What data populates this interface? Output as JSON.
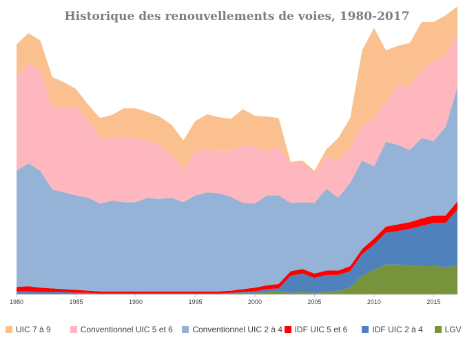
{
  "chart_data": {
    "type": "area",
    "stacked": true,
    "title": "Historique des renouvellements de voies, 1980-2017",
    "xlabel": "",
    "ylabel": "",
    "xlim": [
      1980,
      2017
    ],
    "x_ticks": [
      1980,
      1985,
      1990,
      1995,
      2000,
      2005,
      2010,
      2015
    ],
    "y_axis_labels_shown": false,
    "grid": false,
    "legend_position": "bottom",
    "x": [
      1980,
      1981,
      1982,
      1983,
      1984,
      1985,
      1986,
      1987,
      1988,
      1989,
      1990,
      1991,
      1992,
      1993,
      1994,
      1995,
      1996,
      1997,
      1998,
      1999,
      2000,
      2001,
      2002,
      2003,
      2004,
      2005,
      2006,
      2007,
      2008,
      2009,
      2010,
      2011,
      2012,
      2013,
      2014,
      2015,
      2016,
      2017
    ],
    "series": [
      {
        "name": "LGV",
        "color": "#77933c",
        "values": [
          0,
          0,
          0,
          0,
          0,
          0,
          0,
          0,
          0,
          0,
          0,
          0,
          0,
          0,
          0,
          0,
          0,
          0,
          0,
          2,
          2,
          3,
          5,
          2,
          3,
          2,
          3,
          5,
          9,
          25,
          33,
          40,
          40,
          39,
          38,
          38,
          37,
          38
        ]
      },
      {
        "name": "IDF UIC 2 à 4",
        "color": "#4f81bd",
        "values": [
          4,
          4,
          3,
          3,
          3,
          2,
          2,
          1,
          1,
          1,
          1,
          1,
          1,
          1,
          1,
          1,
          1,
          1,
          2,
          1,
          2,
          4,
          3,
          23,
          25,
          20,
          23,
          21,
          22,
          29,
          34,
          43,
          45,
          49,
          54,
          58,
          59,
          76
        ]
      },
      {
        "name": "IDF UIC 5 et 6",
        "color": "#ff0000",
        "values": [
          6,
          7,
          6,
          5,
          4,
          4,
          3,
          3,
          3,
          3,
          3,
          3,
          3,
          3,
          3,
          3,
          3,
          3,
          3,
          4,
          5,
          5,
          6,
          6,
          6,
          6,
          6,
          6,
          7,
          7,
          8,
          8,
          9,
          9,
          10,
          10,
          10,
          11
        ]
      },
      {
        "name": "Conventionnel UIC 2 à 4",
        "color": "#95b3d7",
        "values": [
          156,
          165,
          157,
          133,
          130,
          127,
          125,
          118,
          122,
          120,
          120,
          126,
          124,
          126,
          120,
          129,
          133,
          132,
          126,
          116,
          113,
          121,
          119,
          92,
          90,
          95,
          110,
          98,
          112,
          119,
          97,
          114,
          107,
          97,
          108,
          100,
          119,
          154
        ]
      },
      {
        "name": "Conventionnel UIC 5 et 6",
        "color": "#ffb7bf",
        "values": [
          125,
          135,
          135,
          111,
          114,
          120,
          104,
          87,
          85,
          88,
          86,
          77,
          72,
          58,
          44,
          60,
          57,
          57,
          62,
          78,
          76,
          59,
          66,
          53,
          52,
          40,
          42,
          50,
          46,
          48,
          64,
          54,
          79,
          88,
          91,
          108,
          96,
          70
        ]
      },
      {
        "name": "UIC 7 à 9",
        "color": "#fac090",
        "values": [
          45,
          40,
          40,
          40,
          34,
          23,
          21,
          28,
          30,
          38,
          40,
          38,
          39,
          40,
          39,
          40,
          48,
          45,
          43,
          48,
          42,
          47,
          38,
          2,
          4,
          3,
          11,
          30,
          41,
          100,
          122,
          69,
          54,
          56,
          65,
          52,
          54,
          38
        ]
      }
    ]
  }
}
